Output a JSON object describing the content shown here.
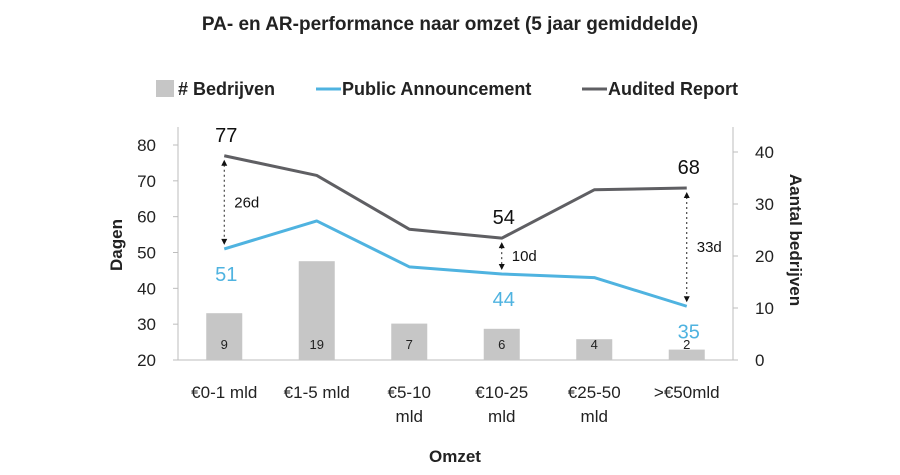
{
  "chart_data": {
    "type": "bar+line",
    "title": "PA- en AR-performance naar omzet (5 jaar gemiddelde)",
    "xlabel": "Omzet",
    "ylabel_left": "Dagen",
    "ylabel_right": "Aantal bedrijven",
    "categories": [
      [
        "€0-1 mld"
      ],
      [
        "€1-5 mld"
      ],
      [
        "€5-10",
        "mld"
      ],
      [
        "€10-25",
        "mld"
      ],
      [
        "€25-50",
        "mld"
      ],
      [
        ">€50mld"
      ]
    ],
    "y_left": {
      "min": 20,
      "max": 80,
      "ticks": [
        20,
        30,
        40,
        50,
        60,
        70,
        80
      ]
    },
    "y_right": {
      "min": 0,
      "max": 40,
      "ticks": [
        0,
        10,
        20,
        30,
        40
      ]
    },
    "legend_position": "top",
    "series": [
      {
        "name": "# Bedrijven",
        "kind": "bar",
        "axis": "right",
        "color": "#c6c6c6",
        "values": [
          9,
          19,
          7,
          6,
          4,
          2
        ],
        "labels": [
          "9",
          "19",
          "7",
          "6",
          "4",
          "2"
        ]
      },
      {
        "name": "Public Announcement",
        "kind": "line",
        "axis": "left",
        "color": "#4fb3e0",
        "values": [
          51,
          58.8,
          46,
          44,
          43,
          35
        ]
      },
      {
        "name": "Audited Report",
        "kind": "line",
        "axis": "left",
        "color": "#5f5f63",
        "values": [
          77,
          71.5,
          56.5,
          54,
          67.5,
          68
        ]
      }
    ],
    "value_labels": {
      "audited": [
        {
          "index": 0,
          "text": "77"
        },
        {
          "index": 3,
          "text": "54"
        },
        {
          "index": 5,
          "text": "68"
        }
      ],
      "public": [
        {
          "index": 0,
          "text": "51"
        },
        {
          "index": 3,
          "text": "44"
        },
        {
          "index": 5,
          "text": "35"
        }
      ]
    },
    "gap_annotations": [
      {
        "index": 0,
        "text": "26d"
      },
      {
        "index": 3,
        "text": "10d"
      },
      {
        "index": 5,
        "text": "33d"
      }
    ]
  }
}
